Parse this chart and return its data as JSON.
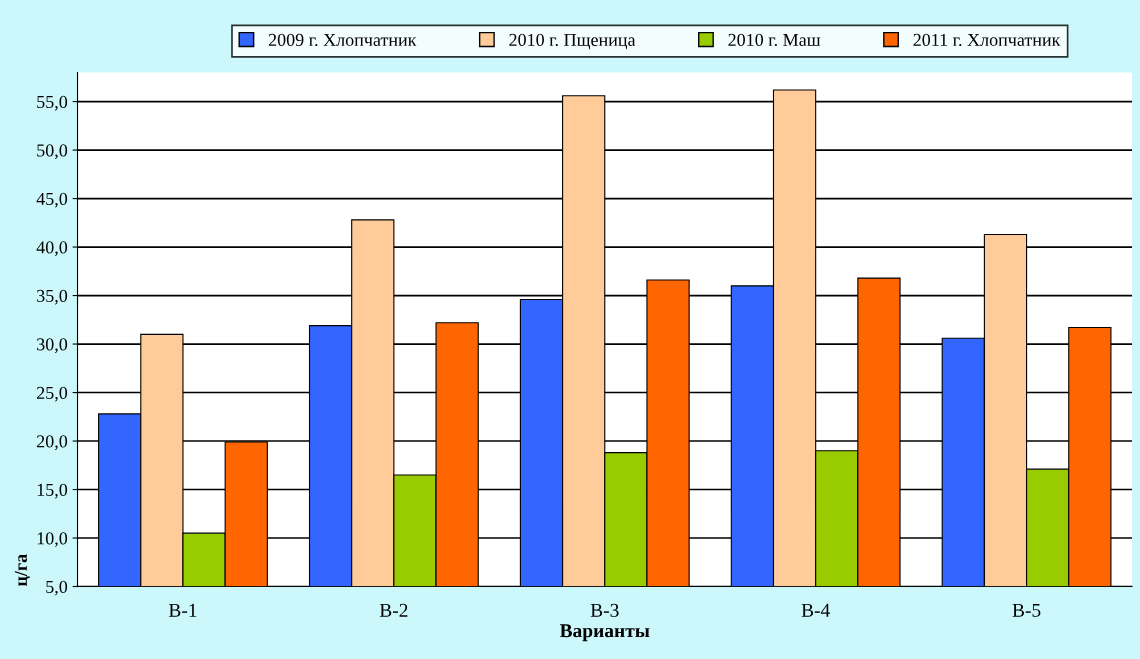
{
  "chart_data": {
    "type": "bar",
    "xlabel": "Варианты",
    "ylabel": "ц/га",
    "categories": [
      "В-1",
      "В-2",
      "В-3",
      "В-4",
      "В-5"
    ],
    "series": [
      {
        "name": "2009 г. Хлопчатник",
        "color": "#3366ff",
        "values": [
          22.8,
          31.9,
          34.6,
          36.0,
          30.6
        ]
      },
      {
        "name": "2010 г. Пщеница",
        "color": "#ffcc99",
        "values": [
          31.0,
          42.8,
          55.6,
          56.2,
          41.3
        ]
      },
      {
        "name": "2010 г. Маш",
        "color": "#99cc00",
        "values": [
          10.5,
          16.5,
          18.8,
          19.0,
          17.1
        ]
      },
      {
        "name": "2011 г. Хлопчатник",
        "color": "#ff6600",
        "values": [
          19.9,
          32.2,
          36.6,
          36.8,
          31.7
        ]
      }
    ],
    "ylim": [
      5,
      58
    ],
    "yticks": [
      {
        "value": 5,
        "label": "5,0"
      },
      {
        "value": 10,
        "label": "10,0"
      },
      {
        "value": 15,
        "label": "15,0"
      },
      {
        "value": 20,
        "label": "20,0"
      },
      {
        "value": 25,
        "label": "25,0"
      },
      {
        "value": 30,
        "label": "30,0"
      },
      {
        "value": 35,
        "label": "35,0"
      },
      {
        "value": 40,
        "label": "40,0"
      },
      {
        "value": 45,
        "label": "45,0"
      },
      {
        "value": 50,
        "label": "50,0"
      },
      {
        "value": 55,
        "label": "55,0"
      }
    ],
    "grid": "y",
    "legend": "top"
  }
}
